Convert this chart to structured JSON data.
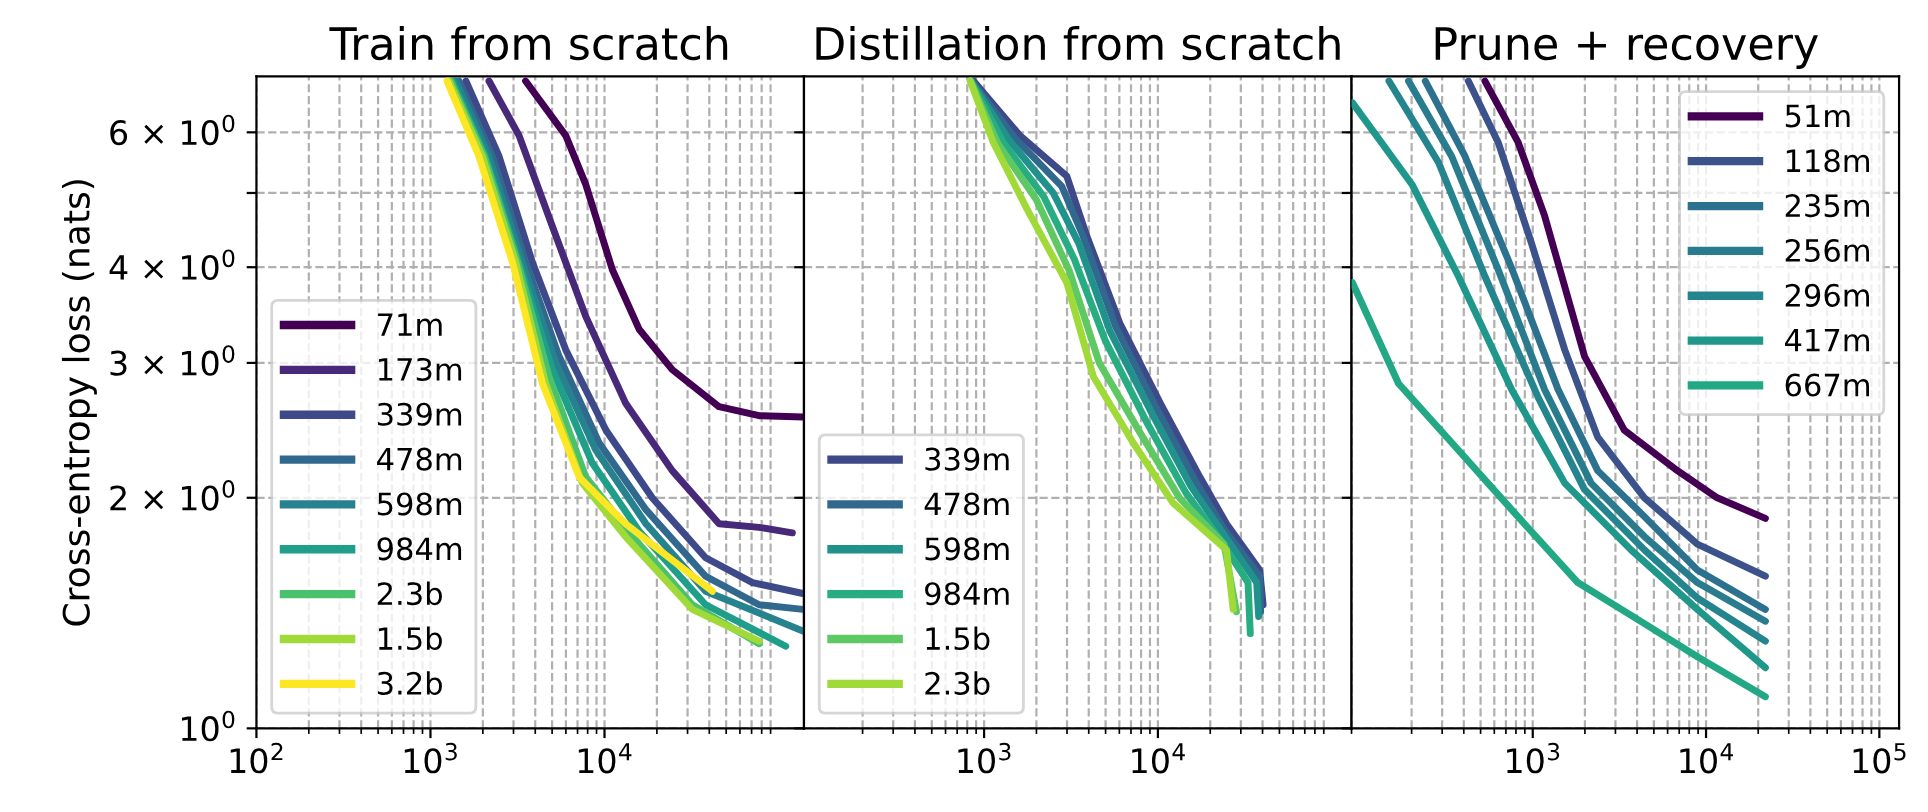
{
  "chart_data": [
    {
      "type": "line",
      "title": "Train from scratch",
      "ylabel": "Cross-entropy loss (nats)",
      "log": "xy",
      "grid": true,
      "legend": "bottom left",
      "xlim": [
        100,
        140000
      ],
      "ylim": [
        1,
        7.1
      ],
      "xticks": [
        {
          "value": 100,
          "label": "10$^{2}$"
        },
        {
          "value": 1000,
          "label": "10$^{3}$"
        },
        {
          "value": 10000,
          "label": "10$^{4}$"
        }
      ],
      "yticks": [
        {
          "value": 1,
          "label": "10$^{0}$"
        },
        {
          "value": 2,
          "label": "2 × 10$^{0}$"
        },
        {
          "value": 3,
          "label": "3 × 10$^{0}$"
        },
        {
          "value": 4,
          "label": "4 × 10$^{0}$"
        },
        {
          "value": 5,
          "label": null
        },
        {
          "value": 6,
          "label": "6 × 10$^{0}$"
        }
      ],
      "series": [
        {
          "name": "71m",
          "color": "#440154",
          "x": [
            3520,
            5990,
            7800,
            11100,
            15800,
            24500,
            45500,
            77300,
            138000
          ],
          "values": [
            7.0,
            5.94,
            5.13,
            3.97,
            3.32,
            2.94,
            2.63,
            2.56,
            2.55
          ]
        },
        {
          "name": "173m",
          "color": "#482878",
          "x": [
            2170,
            3230,
            5020,
            7800,
            13200,
            24500,
            45500,
            77300,
            120000
          ],
          "values": [
            7.0,
            5.94,
            4.52,
            3.45,
            2.66,
            2.17,
            1.85,
            1.83,
            1.8
          ]
        },
        {
          "name": "339m",
          "color": "#3e4989",
          "x": [
            1600,
            2480,
            3850,
            5990,
            10200,
            18800,
            38100,
            70800,
            138000
          ],
          "values": [
            7.0,
            5.58,
            4.06,
            3.12,
            2.45,
            2.0,
            1.67,
            1.55,
            1.5
          ]
        },
        {
          "name": "478m",
          "color": "#31688e",
          "x": [
            1460,
            2270,
            3520,
            5480,
            9300,
            17300,
            38100,
            77300,
            138000
          ],
          "values": [
            7.0,
            5.58,
            4.06,
            3.06,
            2.36,
            1.93,
            1.58,
            1.45,
            1.43
          ]
        },
        {
          "name": "598m",
          "color": "#26828e",
          "x": [
            1400,
            2170,
            3370,
            5250,
            8900,
            17300,
            38100,
            138000
          ],
          "values": [
            7.0,
            5.58,
            4.06,
            3.0,
            2.31,
            1.85,
            1.51,
            1.34
          ]
        },
        {
          "name": "984m",
          "color": "#1f9e89",
          "x": [
            1340,
            2080,
            3230,
            5020,
            8510,
            15800,
            38100,
            110000
          ],
          "values": [
            7.0,
            5.58,
            4.06,
            2.94,
            2.22,
            1.81,
            1.45,
            1.28
          ]
        },
        {
          "name": "2.3b",
          "color": "#4ac16d",
          "x": [
            1310,
            2040,
            3170,
            4800,
            7800,
            14500,
            32000,
            77300
          ],
          "values": [
            7.0,
            5.58,
            4.06,
            2.88,
            2.13,
            1.78,
            1.45,
            1.29
          ]
        },
        {
          "name": "1.5b",
          "color": "#a0da39",
          "x": [
            1280,
            1990,
            3090,
            4590,
            7460,
            13200,
            32000,
            77300
          ],
          "values": [
            7.0,
            5.58,
            4.06,
            2.82,
            2.09,
            1.78,
            1.43,
            1.3
          ]
        },
        {
          "name": "3.2b",
          "color": "#fde725",
          "x": [
            1245,
            1900,
            2960,
            4400,
            7140,
            13200,
            41700
          ],
          "values": [
            7.0,
            5.58,
            4.06,
            2.82,
            2.13,
            1.85,
            1.51
          ]
        }
      ]
    },
    {
      "type": "line",
      "title": "Distillation from scratch",
      "log": "xy",
      "grid": true,
      "legend": "bottom left",
      "tick_labels": "x",
      "xlim": [
        92,
        130000
      ],
      "ylim": [
        1,
        7.1
      ],
      "xticks": [
        {
          "value": 1000,
          "label": "10$^{3}$"
        },
        {
          "value": 10000,
          "label": "10$^{4}$"
        }
      ],
      "yticks": [
        1,
        2,
        3,
        4,
        5,
        6
      ],
      "series": [
        {
          "name": "339m",
          "color": "#3e4989",
          "x": [
            869,
            1610,
            2990,
            3890,
            6040,
            10300,
            17400,
            24800,
            38500,
            40300
          ],
          "values": [
            7.0,
            5.94,
            5.26,
            4.4,
            3.38,
            2.66,
            2.13,
            1.85,
            1.61,
            1.45
          ]
        },
        {
          "name": "478m",
          "color": "#31688e",
          "x": [
            850,
            1500,
            2800,
            3700,
            5700,
            9800,
            16500,
            24000,
            38500,
            39000
          ],
          "values": [
            7.0,
            5.9,
            5.1,
            4.4,
            3.35,
            2.62,
            2.1,
            1.82,
            1.58,
            1.42
          ]
        },
        {
          "name": "598m",
          "color": "#21918c",
          "x": [
            845,
            1400,
            2500,
            3500,
            5300,
            9300,
            15500,
            24000,
            37000,
            38000
          ],
          "values": [
            7.0,
            5.85,
            5.0,
            4.3,
            3.3,
            2.57,
            2.07,
            1.79,
            1.55,
            1.4
          ]
        },
        {
          "name": "984m",
          "color": "#27ad81",
          "x": [
            840,
            1300,
            2200,
            3300,
            5000,
            8700,
            14500,
            23000,
            33000,
            34000
          ],
          "values": [
            7.0,
            5.8,
            4.95,
            4.1,
            3.2,
            2.5,
            2.03,
            1.76,
            1.55,
            1.33
          ]
        },
        {
          "name": "1.5b",
          "color": "#5ec962",
          "x": [
            835,
            1200,
            2000,
            3100,
            4600,
            8000,
            13300,
            24000,
            28300
          ],
          "values": [
            7.0,
            5.8,
            4.9,
            3.95,
            3.0,
            2.42,
            2.0,
            1.74,
            1.42
          ]
        },
        {
          "name": "2.3b",
          "color": "#a0da39",
          "x": [
            832,
            1130,
            1760,
            2990,
            4250,
            7210,
            12200,
            24800,
            27100
          ],
          "values": [
            7.0,
            5.82,
            4.77,
            3.82,
            2.88,
            2.36,
            1.97,
            1.71,
            1.43
          ]
        }
      ]
    },
    {
      "type": "line",
      "title": "Prune + recovery",
      "log": "xy",
      "grid": true,
      "legend": "top right",
      "tick_labels": "x",
      "xlim": [
        90,
        130000
      ],
      "ylim": [
        1,
        7.1
      ],
      "xticks": [
        {
          "value": 1000,
          "label": "10$^{3}$"
        },
        {
          "value": 10000,
          "label": "10$^{4}$"
        },
        {
          "value": 100000,
          "label": "10$^{5}$"
        }
      ],
      "yticks": [
        1,
        2,
        3,
        4,
        5,
        6
      ],
      "series": [
        {
          "name": "51m",
          "color": "#440154",
          "x": [
            530,
            824,
            1170,
            1990,
            3380,
            6840,
            11600,
            22000
          ],
          "values": [
            7.0,
            5.82,
            4.67,
            3.06,
            2.45,
            2.17,
            2.0,
            1.88
          ]
        },
        {
          "name": "118m",
          "color": "#3b528b",
          "x": [
            425,
            632,
            983,
            1530,
            2370,
            4410,
            8910,
            22000
          ],
          "values": [
            7.0,
            5.82,
            4.3,
            3.12,
            2.4,
            2.0,
            1.74,
            1.58
          ]
        },
        {
          "name": "235m",
          "color": "#2c728e",
          "x": [
            240,
            407,
            755,
            1400,
            2370,
            4410,
            8910,
            22000
          ],
          "values": [
            7.0,
            5.58,
            3.99,
            2.77,
            2.17,
            1.89,
            1.61,
            1.43
          ]
        },
        {
          "name": "256m",
          "color": "#287c8e",
          "x": [
            192,
            341,
            632,
            1170,
            2170,
            4410,
            8910,
            22000
          ],
          "values": [
            7.0,
            5.58,
            3.97,
            2.77,
            2.09,
            1.78,
            1.55,
            1.38
          ]
        },
        {
          "name": "296m",
          "color": "#25858e",
          "x": [
            148,
            286,
            530,
            1070,
            1990,
            4410,
            8910,
            22000
          ],
          "values": [
            7.0,
            5.48,
            3.89,
            2.71,
            2.05,
            1.71,
            1.48,
            1.3
          ]
        },
        {
          "name": "417m",
          "color": "#1f988b",
          "x": [
            91,
            201,
            373,
            755,
            1530,
            3690,
            8910,
            22000
          ],
          "values": [
            6.56,
            5.13,
            3.89,
            2.77,
            2.09,
            1.71,
            1.43,
            1.2
          ]
        },
        {
          "name": "667m",
          "color": "#22a884",
          "x": [
            91,
            168,
            341,
            755,
            1820,
            4410,
            8910,
            22000
          ],
          "values": [
            3.82,
            2.82,
            2.36,
            1.93,
            1.55,
            1.37,
            1.24,
            1.1
          ]
        }
      ]
    }
  ]
}
